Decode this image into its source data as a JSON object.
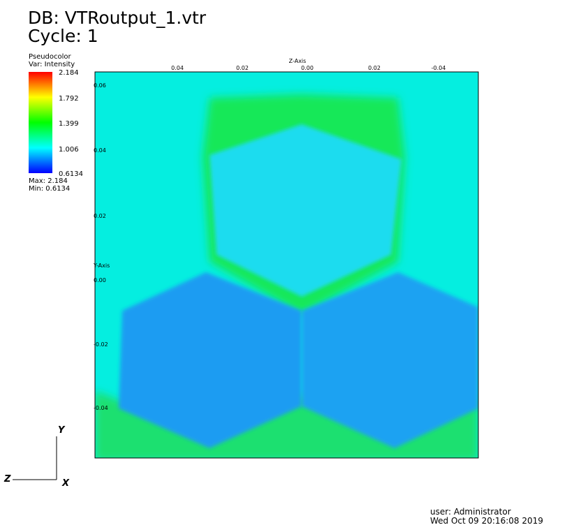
{
  "header": {
    "db": "DB: VTRoutput_1.vtr",
    "cycle": "Cycle: 1"
  },
  "legend": {
    "title": "Pseudocolor",
    "var": "Var: Intensity",
    "labels": [
      "2.184",
      "1.792",
      "1.399",
      "1.006",
      "0.6134"
    ],
    "max": "Max:  2.184",
    "min": "Min:  0.6134"
  },
  "axes": {
    "top_title": "Z-Axis",
    "left_title": "Y-Axis",
    "top_ticks": [
      "0.04",
      "0.02",
      "0.00",
      "0.02",
      "-0.04"
    ],
    "left_ticks": [
      "0.06",
      "0.04",
      "0.02",
      "0.00",
      "-0.02",
      "-0.04"
    ]
  },
  "triad": {
    "y": "Y",
    "z": "Z",
    "x": "X"
  },
  "footer": {
    "user": "user: Administrator",
    "date": "Wed Oct 09 20:16:08 2019"
  }
}
